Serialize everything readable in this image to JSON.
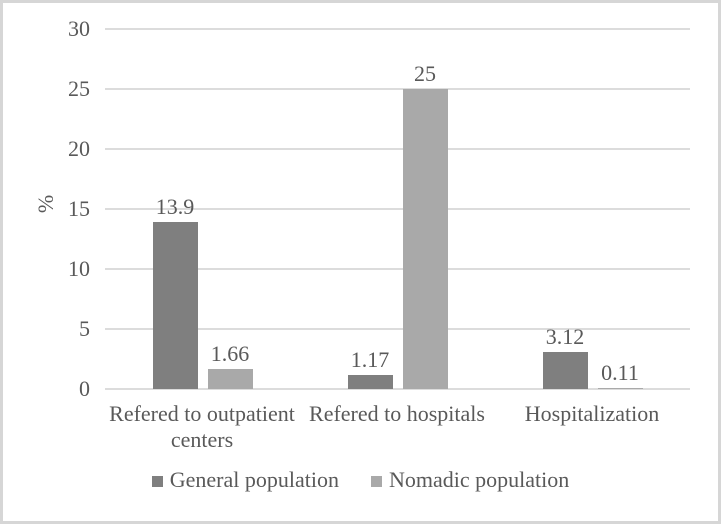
{
  "chart_data": {
    "type": "bar",
    "ylabel": "%",
    "categories": [
      "Refered to outpatient centers",
      "Refered to hospitals",
      "Hospitalization"
    ],
    "series": [
      {
        "name": "General population",
        "color": "#7f7f7f",
        "values": [
          13.9,
          1.17,
          3.12
        ],
        "value_labels": [
          "13.9",
          "1.17",
          "3.12"
        ]
      },
      {
        "name": "Nomadic population",
        "color": "#a9a9a9",
        "values": [
          1.66,
          25,
          0.11
        ],
        "value_labels": [
          "1.66",
          "25",
          "0.11"
        ]
      }
    ],
    "ylim": [
      0,
      30
    ],
    "yticks": [
      0,
      5,
      10,
      15,
      20,
      25,
      30
    ],
    "grid": true,
    "legend_position": "bottom",
    "colors": {
      "gridline": "#dcdcdc",
      "axis_text": "#595959",
      "figure_border": "#d6d6d6"
    }
  }
}
